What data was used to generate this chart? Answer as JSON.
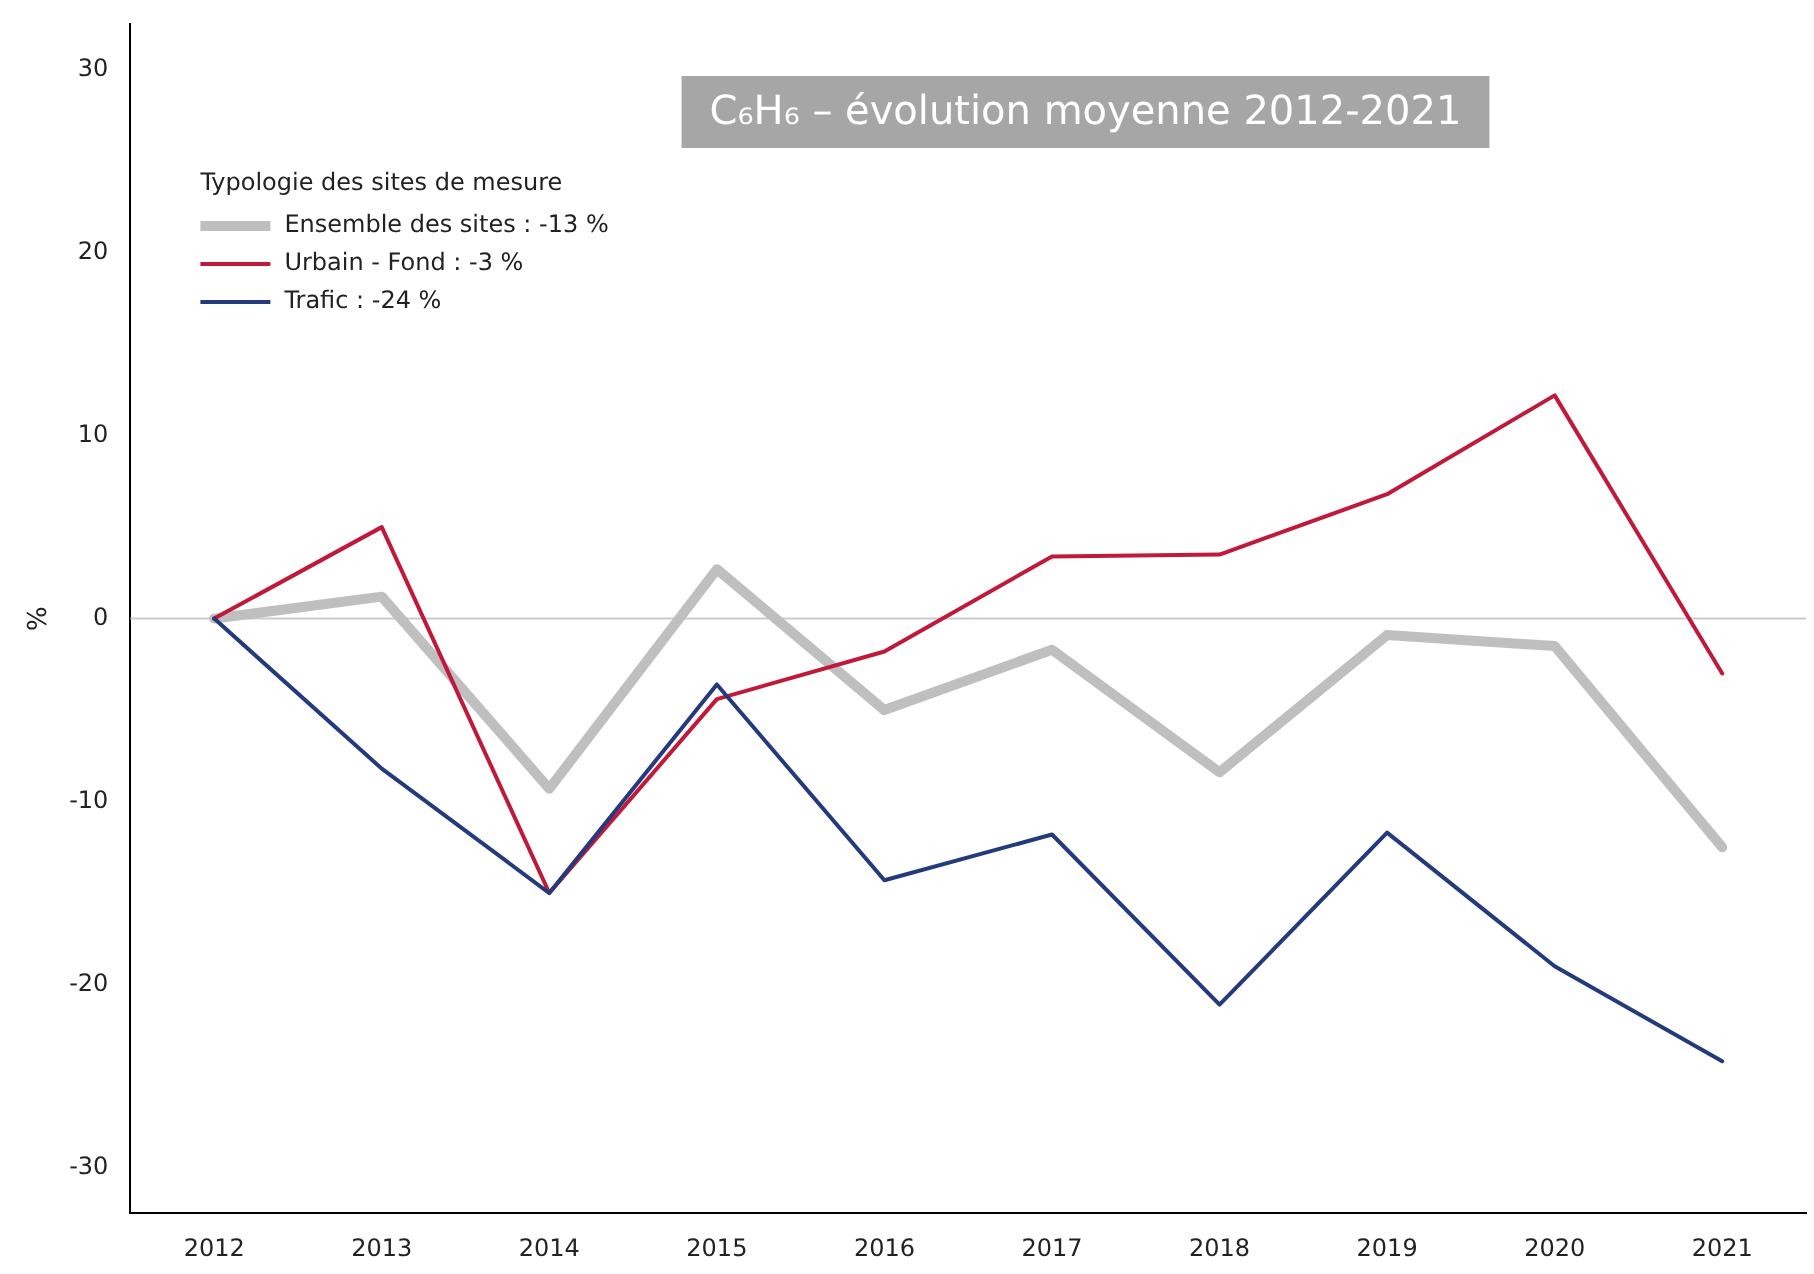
{
  "chart_data": {
    "type": "line",
    "title": "C₆H₆ – évolution moyenne 2012-2021",
    "ylabel": "%",
    "legend_title": "Typologie des sites de mesure",
    "legend": "top left",
    "grid": false,
    "marker": "none",
    "line_style": "solid",
    "categories": [
      "2012",
      "2013",
      "2014",
      "2015",
      "2016",
      "2017",
      "2018",
      "2019",
      "2020",
      "2021"
    ],
    "ylim": [
      -32.5,
      32.5
    ],
    "yticks": [
      -30,
      -20,
      -10,
      0,
      10,
      20,
      30
    ],
    "ref_lines": [
      {
        "axis": "y",
        "value": 0,
        "color": "#cccccc"
      }
    ],
    "series": [
      {
        "name": "Ensemble des sites : -13 %",
        "color": "#bfbfbf",
        "values": [
          0,
          1.2,
          -9.3,
          2.7,
          -5.0,
          -1.7,
          -8.4,
          -0.9,
          -1.5,
          -12.5
        ]
      },
      {
        "name": "Urbain - Fond : -3 %",
        "color": "#c0193a",
        "values": [
          0,
          5.0,
          -15.0,
          -4.4,
          -1.8,
          3.4,
          3.5,
          6.8,
          12.2,
          -3.0
        ]
      },
      {
        "name": "Trafic : -24 %",
        "color": "#233a7d",
        "values": [
          0,
          -8.2,
          -15.0,
          -3.6,
          -14.3,
          -11.8,
          -21.1,
          -11.7,
          -19.0,
          -24.2
        ]
      }
    ]
  }
}
